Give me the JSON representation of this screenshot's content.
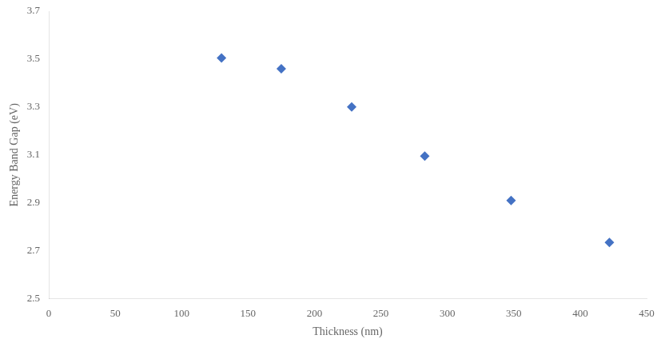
{
  "chart_data": {
    "type": "scatter",
    "x": [
      130,
      175,
      228,
      283,
      348,
      422
    ],
    "values": [
      3.505,
      3.46,
      3.3,
      3.095,
      2.91,
      2.735
    ],
    "color": "#4472C4",
    "marker": "diamond",
    "xlabel": "Thickness (nm)",
    "ylabel": "Energy Band Gap (eV)",
    "xlim": [
      0,
      450
    ],
    "ylim": [
      2.5,
      3.7
    ],
    "xticks": [
      0,
      50,
      100,
      150,
      200,
      250,
      300,
      350,
      400,
      450
    ],
    "yticks": [
      2.5,
      2.7,
      2.9,
      3.1,
      3.3,
      3.5,
      3.7
    ],
    "grid": false
  }
}
